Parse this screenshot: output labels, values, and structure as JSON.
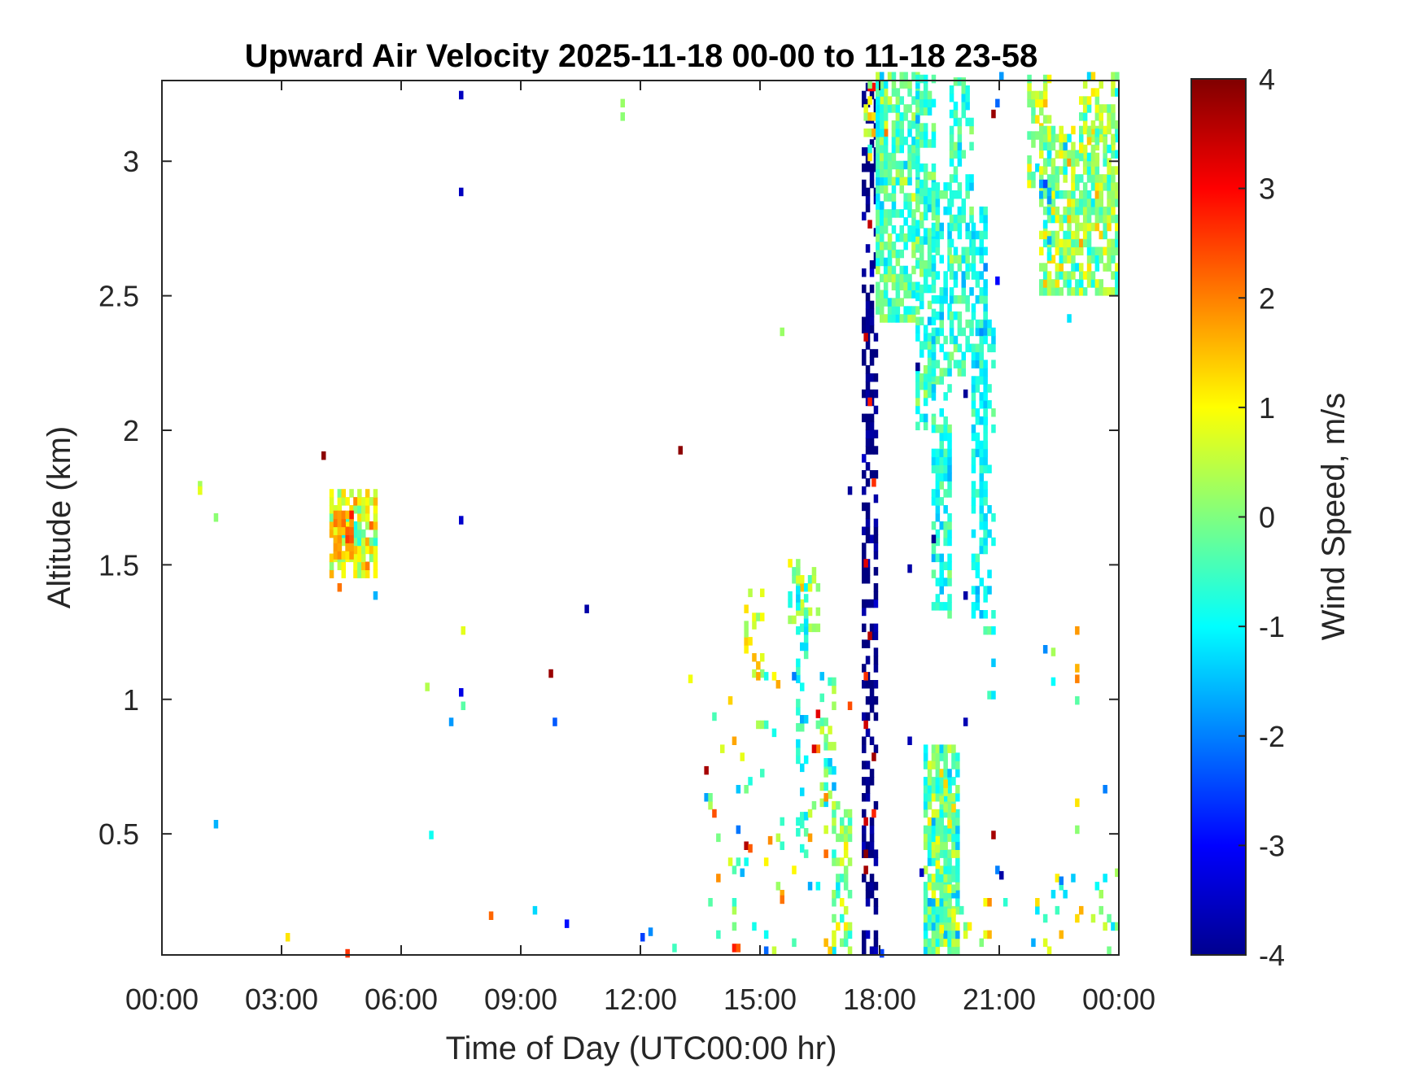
{
  "chart_data": {
    "type": "heatmap",
    "title": "Upward Air Velocity 2025-11-18 00-00 to 11-18 23-58",
    "xlabel": "Time of Day (UTC00:00 hr)",
    "ylabel": "Altitude (km)",
    "colorbar_label": "Wind Speed, m/s",
    "xlim": [
      0,
      24
    ],
    "ylim": [
      0.05,
      3.3
    ],
    "clim": [
      -4,
      4
    ],
    "colormap": "jet",
    "grid": false,
    "x_ticks": [
      0,
      3,
      6,
      9,
      12,
      15,
      18,
      21,
      24
    ],
    "x_tick_labels": [
      "00:00",
      "03:00",
      "06:00",
      "09:00",
      "12:00",
      "15:00",
      "18:00",
      "21:00",
      "00:00"
    ],
    "y_ticks": [
      0.5,
      1,
      1.5,
      2,
      2.5,
      3
    ],
    "y_tick_labels": [
      "0.5",
      "1",
      "1.5",
      "2",
      "2.5",
      "3"
    ],
    "colorbar_ticks": [
      4,
      3,
      2,
      1,
      0,
      -1,
      -2,
      -3,
      -4
    ],
    "colorbar_tick_labels": [
      "4",
      "3",
      "2",
      "1",
      "0",
      "-1",
      "-2",
      "-3",
      "-4"
    ],
    "regions": [
      {
        "t0": 4.2,
        "t1": 5.3,
        "a0": 1.45,
        "a1": 1.78,
        "v": 0.6,
        "s": 1.0,
        "d": 0.75
      },
      {
        "t0": 4.3,
        "t1": 4.7,
        "a0": 1.52,
        "a1": 1.68,
        "v": 1.8,
        "s": 0.6,
        "d": 0.9
      },
      {
        "t0": 14.6,
        "t1": 15.0,
        "a0": 1.05,
        "a1": 1.4,
        "v": 0.8,
        "s": 0.8,
        "d": 0.35
      },
      {
        "t0": 15.7,
        "t1": 16.5,
        "a0": 1.25,
        "a1": 1.5,
        "v": 0.0,
        "s": 0.8,
        "d": 0.5
      },
      {
        "t0": 15.9,
        "t1": 16.2,
        "a0": 0.4,
        "a1": 1.4,
        "v": -0.8,
        "s": 0.6,
        "d": 0.35
      },
      {
        "t0": 16.5,
        "t1": 16.9,
        "a0": 0.6,
        "a1": 1.1,
        "v": -0.4,
        "s": 0.8,
        "d": 0.3
      },
      {
        "t0": 16.8,
        "t1": 17.3,
        "a0": 0.05,
        "a1": 0.6,
        "v": 0.0,
        "s": 0.9,
        "d": 0.55
      },
      {
        "t0": 17.55,
        "t1": 17.95,
        "a0": 0.05,
        "a1": 3.3,
        "v": -4.0,
        "s": 0.4,
        "d": 0.45
      },
      {
        "t0": 17.6,
        "t1": 17.9,
        "a0": 0.05,
        "a1": 3.3,
        "v": 3.2,
        "s": 0.6,
        "d": 0.05
      },
      {
        "t0": 17.6,
        "t1": 18.2,
        "a0": 3.0,
        "a1": 3.3,
        "v": 0.5,
        "s": 0.8,
        "d": 0.4
      },
      {
        "t0": 17.9,
        "t1": 19.0,
        "a0": 2.4,
        "a1": 3.3,
        "v": -0.4,
        "s": 0.7,
        "d": 0.7
      },
      {
        "t0": 18.9,
        "t1": 19.4,
        "a0": 2.0,
        "a1": 3.3,
        "v": -0.6,
        "s": 0.6,
        "d": 0.6
      },
      {
        "t0": 19.3,
        "t1": 19.75,
        "a0": 1.3,
        "a1": 2.9,
        "v": -0.8,
        "s": 0.6,
        "d": 0.55
      },
      {
        "t0": 19.75,
        "t1": 20.3,
        "a0": 2.2,
        "a1": 3.3,
        "v": -0.6,
        "s": 0.6,
        "d": 0.5
      },
      {
        "t0": 20.3,
        "t1": 20.7,
        "a0": 1.3,
        "a1": 2.8,
        "v": -1.0,
        "s": 0.5,
        "d": 0.6
      },
      {
        "t0": 20.6,
        "t1": 20.9,
        "a0": 1.0,
        "a1": 2.6,
        "v": -0.8,
        "s": 0.6,
        "d": 0.25
      },
      {
        "t0": 19.1,
        "t1": 20.0,
        "a0": 0.05,
        "a1": 0.82,
        "v": -0.3,
        "s": 0.9,
        "d": 0.85
      },
      {
        "t0": 19.4,
        "t1": 19.9,
        "a0": 0.1,
        "a1": 0.7,
        "v": 0.6,
        "s": 0.6,
        "d": 0.25
      },
      {
        "t0": 21.7,
        "t1": 22.3,
        "a0": 2.9,
        "a1": 3.3,
        "v": 0.3,
        "s": 0.9,
        "d": 0.55
      },
      {
        "t0": 22.0,
        "t1": 24.0,
        "a0": 2.5,
        "a1": 3.1,
        "v": 0.1,
        "s": 0.9,
        "d": 0.75
      },
      {
        "t0": 23.0,
        "t1": 24.0,
        "a0": 3.0,
        "a1": 3.3,
        "v": 0.2,
        "s": 0.9,
        "d": 0.45
      },
      {
        "t0": 22.0,
        "t1": 22.3,
        "a0": 2.6,
        "a1": 2.9,
        "v": -1.8,
        "s": 0.6,
        "d": 0.3
      },
      {
        "t0": 20.0,
        "t1": 21.2,
        "a0": 0.05,
        "a1": 0.25,
        "v": 0.2,
        "s": 1.2,
        "d": 0.2
      },
      {
        "t0": 21.8,
        "t1": 24.0,
        "a0": 0.05,
        "a1": 0.35,
        "v": -0.2,
        "s": 1.4,
        "d": 0.1
      },
      {
        "t0": 13.5,
        "t1": 16.8,
        "a0": 0.05,
        "a1": 1.1,
        "v": 0.0,
        "s": 1.6,
        "d": 0.05
      }
    ],
    "points": [
      {
        "t": 0.9,
        "a": 1.78,
        "v": 0.3
      },
      {
        "t": 0.9,
        "a": 1.76,
        "v": 0.8
      },
      {
        "t": 1.3,
        "a": 1.66,
        "v": 0.1
      },
      {
        "t": 1.3,
        "a": 0.52,
        "v": -1.6
      },
      {
        "t": 4.0,
        "a": 1.89,
        "v": 3.9
      },
      {
        "t": 4.4,
        "a": 1.4,
        "v": 2.1
      },
      {
        "t": 4.6,
        "a": 0.04,
        "v": 2.6
      },
      {
        "t": 5.3,
        "a": 1.37,
        "v": -1.6
      },
      {
        "t": 3.1,
        "a": 0.1,
        "v": 1.2
      },
      {
        "t": 6.6,
        "a": 1.03,
        "v": 0.4
      },
      {
        "t": 6.7,
        "a": 0.48,
        "v": -0.9
      },
      {
        "t": 7.2,
        "a": 0.9,
        "v": -1.8
      },
      {
        "t": 7.45,
        "a": 3.23,
        "v": -3.5
      },
      {
        "t": 7.45,
        "a": 2.87,
        "v": -3.5
      },
      {
        "t": 7.45,
        "a": 1.65,
        "v": -3.4
      },
      {
        "t": 7.45,
        "a": 1.01,
        "v": -3.2
      },
      {
        "t": 7.5,
        "a": 0.96,
        "v": -0.3
      },
      {
        "t": 7.5,
        "a": 1.24,
        "v": 0.8
      },
      {
        "t": 8.2,
        "a": 0.18,
        "v": 2.2
      },
      {
        "t": 9.3,
        "a": 0.2,
        "v": -1.3
      },
      {
        "t": 9.7,
        "a": 1.08,
        "v": 3.8
      },
      {
        "t": 9.8,
        "a": 0.9,
        "v": -2.3
      },
      {
        "t": 10.1,
        "a": 0.15,
        "v": -2.9
      },
      {
        "t": 10.6,
        "a": 1.32,
        "v": -3.7
      },
      {
        "t": 11.5,
        "a": 3.2,
        "v": 0.2
      },
      {
        "t": 11.5,
        "a": 3.15,
        "v": 0.1
      },
      {
        "t": 12.0,
        "a": 0.1,
        "v": -2.5
      },
      {
        "t": 12.2,
        "a": 0.12,
        "v": -1.9
      },
      {
        "t": 12.8,
        "a": 0.06,
        "v": -0.5
      },
      {
        "t": 12.95,
        "a": 1.91,
        "v": 3.9
      },
      {
        "t": 13.2,
        "a": 1.06,
        "v": 0.9
      },
      {
        "t": 13.6,
        "a": 0.72,
        "v": 3.7
      },
      {
        "t": 14.3,
        "a": 0.06,
        "v": 2.8
      },
      {
        "t": 14.4,
        "a": 0.06,
        "v": 2.3
      },
      {
        "t": 14.6,
        "a": 0.44,
        "v": 3.6
      },
      {
        "t": 14.7,
        "a": 0.43,
        "v": 2.3
      },
      {
        "t": 14.5,
        "a": 0.34,
        "v": -1.6
      },
      {
        "t": 15.2,
        "a": 0.46,
        "v": 1.9
      },
      {
        "t": 15.5,
        "a": 2.35,
        "v": 0.2
      },
      {
        "t": 15.5,
        "a": 0.24,
        "v": 2.1
      },
      {
        "t": 16.3,
        "a": 0.8,
        "v": 3.3
      },
      {
        "t": 16.4,
        "a": 0.93,
        "v": 3.2
      },
      {
        "t": 17.2,
        "a": 1.76,
        "v": -3.8
      },
      {
        "t": 17.2,
        "a": 0.96,
        "v": 2.4
      },
      {
        "t": 18.0,
        "a": 0.04,
        "v": -2.5
      },
      {
        "t": 18.7,
        "a": 1.47,
        "v": -3.7
      },
      {
        "t": 18.7,
        "a": 0.83,
        "v": -3.6
      },
      {
        "t": 18.9,
        "a": 2.22,
        "v": -3.9
      },
      {
        "t": 19.0,
        "a": 0.34,
        "v": -3.5
      },
      {
        "t": 19.3,
        "a": 1.58,
        "v": -3.9
      },
      {
        "t": 20.1,
        "a": 2.12,
        "v": -3.8
      },
      {
        "t": 20.1,
        "a": 1.37,
        "v": -3.7
      },
      {
        "t": 20.1,
        "a": 0.9,
        "v": -3.6
      },
      {
        "t": 20.8,
        "a": 3.16,
        "v": 3.8
      },
      {
        "t": 20.9,
        "a": 3.2,
        "v": -2.2
      },
      {
        "t": 21.0,
        "a": 3.3,
        "v": -1.8
      },
      {
        "t": 20.9,
        "a": 2.54,
        "v": -3.0
      },
      {
        "t": 20.9,
        "a": 0.35,
        "v": -2.0
      },
      {
        "t": 21.0,
        "a": 0.33,
        "v": -3.7
      },
      {
        "t": 20.8,
        "a": 0.48,
        "v": 3.7
      },
      {
        "t": 22.1,
        "a": 1.17,
        "v": -1.9
      },
      {
        "t": 22.3,
        "a": 1.16,
        "v": 0.3
      },
      {
        "t": 22.3,
        "a": 1.05,
        "v": -1.0
      },
      {
        "t": 22.7,
        "a": 2.4,
        "v": -1.2
      },
      {
        "t": 22.9,
        "a": 1.24,
        "v": 1.8
      },
      {
        "t": 22.9,
        "a": 1.1,
        "v": 1.6
      },
      {
        "t": 22.9,
        "a": 1.06,
        "v": 2.0
      },
      {
        "t": 22.9,
        "a": 0.98,
        "v": -0.3
      },
      {
        "t": 22.9,
        "a": 0.6,
        "v": 1.2
      },
      {
        "t": 22.9,
        "a": 0.5,
        "v": 0.1
      },
      {
        "t": 22.5,
        "a": 0.31,
        "v": -2.0
      },
      {
        "t": 22.8,
        "a": 0.32,
        "v": -1.4
      },
      {
        "t": 23.6,
        "a": 0.65,
        "v": -2.0
      },
      {
        "t": 23.9,
        "a": 0.34,
        "v": 0.3
      }
    ]
  }
}
